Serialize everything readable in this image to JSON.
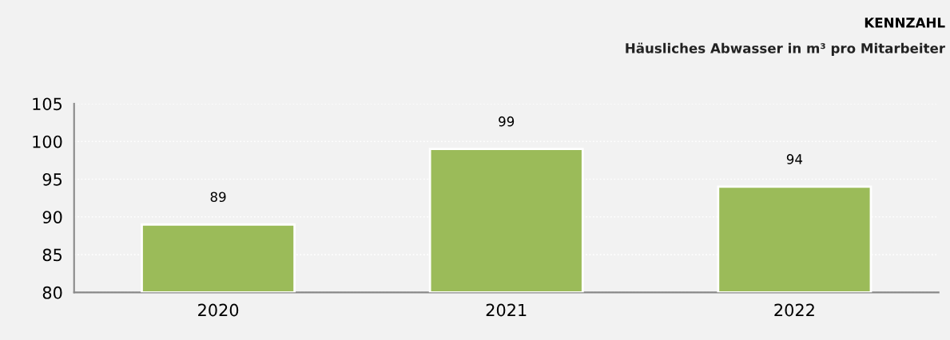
{
  "chart_data": {
    "type": "bar",
    "title": "KENNZAHL",
    "subtitle": "Häusliches Abwasser in m³ pro Mitarbeiter",
    "categories": [
      "2020",
      "2021",
      "2022"
    ],
    "values": [
      89,
      99,
      94
    ],
    "color": "#9bbb59",
    "ylim": [
      80,
      105
    ],
    "yticks": [
      80,
      85,
      90,
      95,
      100,
      105
    ],
    "grid": "y",
    "data_labels": true
  }
}
